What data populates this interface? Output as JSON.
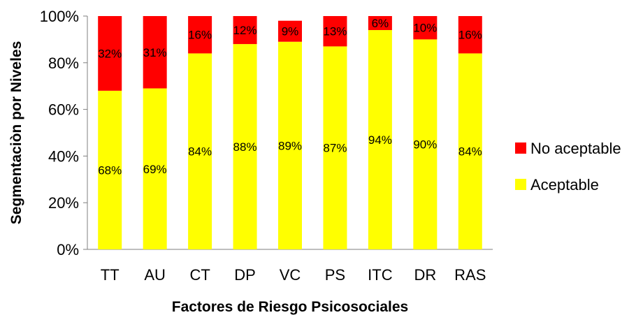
{
  "chart_data": {
    "type": "bar",
    "stacked": true,
    "categories": [
      "TT",
      "AU",
      "CT",
      "DP",
      "VC",
      "PS",
      "ITC",
      "DR",
      "RAS"
    ],
    "series": [
      {
        "name": "Aceptable",
        "color": "#FFFF00",
        "values": [
          68,
          69,
          84,
          88,
          89,
          87,
          94,
          90,
          84
        ],
        "labels": [
          "68%",
          "69%",
          "84%",
          "88%",
          "89%",
          "87%",
          "94%",
          "90%",
          "84%"
        ]
      },
      {
        "name": "No aceptable",
        "color": "#FF0000",
        "values": [
          32,
          31,
          16,
          12,
          9,
          13,
          6,
          10,
          16
        ],
        "labels": [
          "32%",
          "31%",
          "16%",
          "12%",
          "9%",
          "13%",
          "6%",
          "10%",
          "16%"
        ]
      }
    ],
    "xlabel": "Factores de Riesgo Psicosociales",
    "ylabel": "Segmentaciòn por Niveles",
    "ylim": [
      0,
      100
    ],
    "yticks": [
      "0%",
      "20%",
      "40%",
      "60%",
      "80%",
      "100%"
    ],
    "grid": false,
    "legend": "right"
  }
}
